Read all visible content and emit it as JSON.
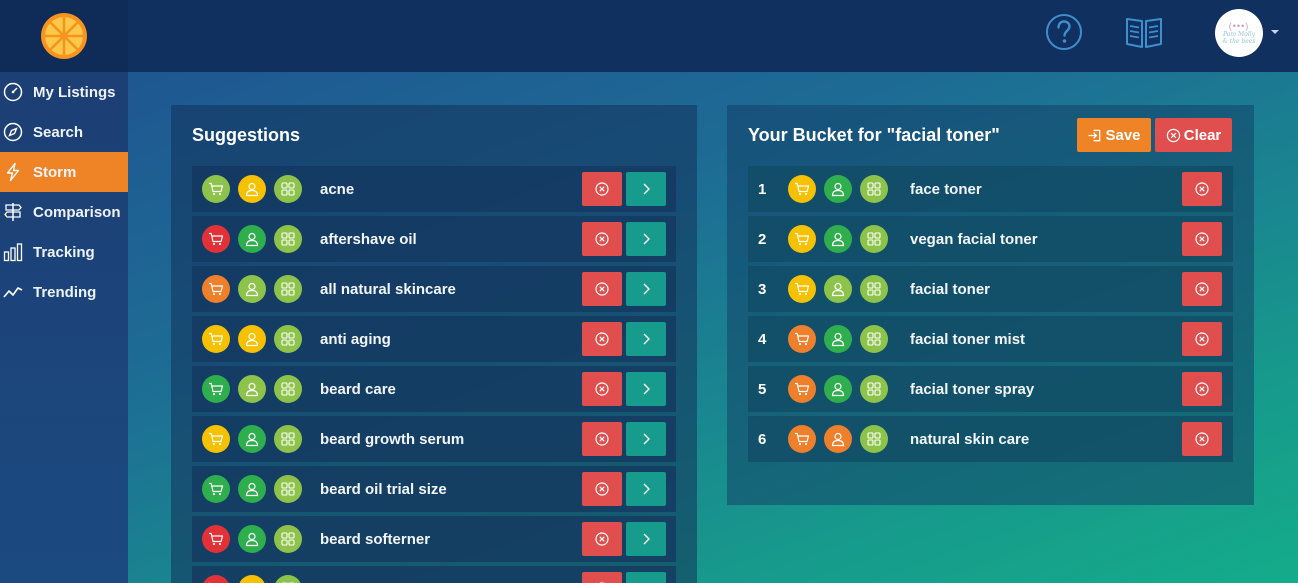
{
  "nav": {
    "items": [
      {
        "label": "My Listings",
        "icon": "speedometer-icon"
      },
      {
        "label": "Search",
        "icon": "compass-icon"
      },
      {
        "label": "Storm",
        "icon": "lightning-icon",
        "active": true
      },
      {
        "label": "Comparison",
        "icon": "signpost-icon"
      },
      {
        "label": "Tracking",
        "icon": "bar-chart-icon"
      },
      {
        "label": "Trending",
        "icon": "trend-line-icon"
      }
    ]
  },
  "avatar": {
    "dots": "(•••)",
    "script_line1": "Pam Molly",
    "script_line2": "& the bees"
  },
  "colors": {
    "red": "#e23237",
    "orange": "#ee7f2b",
    "yellow": "#f6c100",
    "lightgreen": "#8dc34a",
    "green": "#2fae4e",
    "accent": "#ef8426"
  },
  "suggestions": {
    "title": "Suggestions",
    "rows": [
      {
        "label": "acne",
        "c1": "lightgreen",
        "c2": "yellow",
        "c3": "lightgreen"
      },
      {
        "label": "aftershave oil",
        "c1": "red",
        "c2": "green",
        "c3": "lightgreen"
      },
      {
        "label": "all natural skincare",
        "c1": "orange",
        "c2": "lightgreen",
        "c3": "lightgreen"
      },
      {
        "label": "anti aging",
        "c1": "yellow",
        "c2": "yellow",
        "c3": "lightgreen"
      },
      {
        "label": "beard care",
        "c1": "green",
        "c2": "lightgreen",
        "c3": "lightgreen"
      },
      {
        "label": "beard growth serum",
        "c1": "yellow",
        "c2": "green",
        "c3": "lightgreen"
      },
      {
        "label": "beard oil trial size",
        "c1": "green",
        "c2": "green",
        "c3": "lightgreen"
      },
      {
        "label": "beard softerner",
        "c1": "red",
        "c2": "green",
        "c3": "lightgreen"
      },
      {
        "label": "",
        "c1": "red",
        "c2": "yellow",
        "c3": "lightgreen"
      }
    ]
  },
  "bucket": {
    "title": "Your Bucket for \"facial toner\"",
    "save_label": "Save",
    "clear_label": "Clear",
    "rows": [
      {
        "num": "1",
        "label": "face toner",
        "c1": "yellow",
        "c2": "green",
        "c3": "lightgreen"
      },
      {
        "num": "2",
        "label": "vegan facial toner",
        "c1": "yellow",
        "c2": "green",
        "c3": "lightgreen"
      },
      {
        "num": "3",
        "label": "facial toner",
        "c1": "yellow",
        "c2": "lightgreen",
        "c3": "lightgreen"
      },
      {
        "num": "4",
        "label": "facial toner mist",
        "c1": "orange",
        "c2": "green",
        "c3": "lightgreen"
      },
      {
        "num": "5",
        "label": "facial toner spray",
        "c1": "orange",
        "c2": "green",
        "c3": "lightgreen"
      },
      {
        "num": "6",
        "label": "natural skin care",
        "c1": "orange",
        "c2": "orange",
        "c3": "lightgreen"
      }
    ]
  }
}
